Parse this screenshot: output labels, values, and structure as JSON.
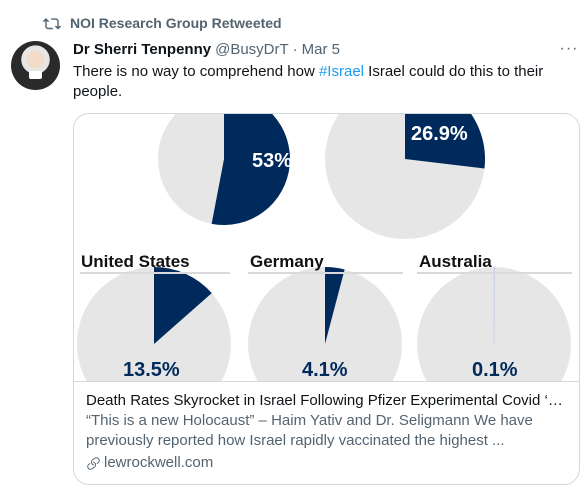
{
  "retweet": {
    "label": "NOI Research Group Retweeted",
    "icon": "retweet-icon"
  },
  "tweet": {
    "display_name": "Dr Sherri Tenpenny",
    "handle": "@BusyDrT",
    "separator": "·",
    "date": "Mar 5",
    "more_label": "···",
    "text_before": "There is no way to comprehend how ",
    "hashtag": "#Israel",
    "text_after": " Israel could do this to their people."
  },
  "card": {
    "image": {
      "top_charts": [
        {
          "value_label": "53%",
          "percent": 53
        },
        {
          "value_label": "26.9%",
          "percent": 26.9
        }
      ],
      "bottom_charts": [
        {
          "country": "United States",
          "value_label": "13.5%",
          "percent": 13.5
        },
        {
          "country": "Germany",
          "value_label": "4.1%",
          "percent": 4.1
        },
        {
          "country": "Australia",
          "value_label": "0.1%",
          "percent": 0.1
        }
      ],
      "colors": {
        "fill": "#002a5c",
        "background": "#e6e6e6"
      }
    },
    "title": "Death Rates Skyrocket in Israel Following Pfizer Experimental Covid ‘Va...",
    "description": "“This is a new Holocaust” – Haim Yativ and Dr. Seligmann We have previously reported how Israel rapidly vaccinated the highest ...",
    "domain": "lewrockwell.com",
    "domain_icon": "link-icon"
  },
  "colors": {
    "accent": "#1d9bf0",
    "secondary_text": "#536471",
    "border": "#cfd9de"
  }
}
